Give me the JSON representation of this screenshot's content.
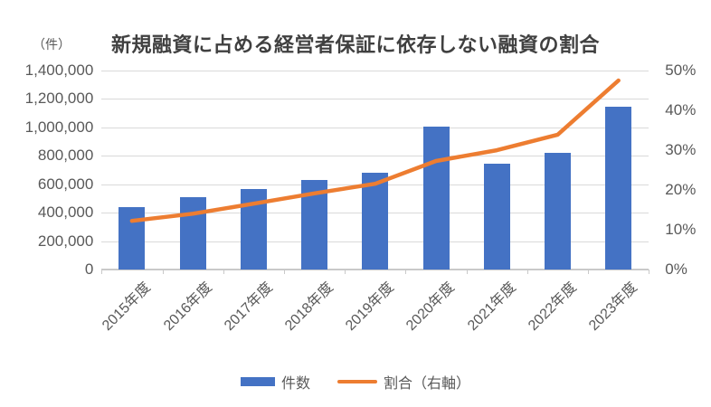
{
  "header": {
    "title": "新規融資に占める経営者保証に依存しない融資の割合"
  },
  "legend": {
    "items": [
      {
        "label": "件数",
        "marker": "bar-swatch",
        "color": "#4472C4"
      },
      {
        "label": "割合（右軸）",
        "marker": "line-swatch",
        "color": "#ED7D31"
      }
    ]
  },
  "colors": {
    "bar": "#4472C4",
    "line": "#ED7D31",
    "gridline": "#D9D9D9",
    "axis": "#C9C9C9",
    "tick_text": "#595959",
    "title_text": "#404040"
  },
  "chart_data": {
    "type": "combo",
    "title": "新規融資に占める経営者保証に依存しない融資の割合",
    "categories": [
      "2015年度",
      "2016年度",
      "2017年度",
      "2018年度",
      "2019年度",
      "2020年度",
      "2021年度",
      "2022年度",
      "2023年度"
    ],
    "series": [
      {
        "name": "件数",
        "type": "bar",
        "axis": "left",
        "color": "#4472C4",
        "values": [
          440000,
          505000,
          565000,
          630000,
          680000,
          1005000,
          745000,
          820000,
          1145000
        ]
      },
      {
        "name": "割合（右軸）",
        "type": "line",
        "axis": "right",
        "color": "#ED7D31",
        "values": [
          12.2,
          14.0,
          16.5,
          19.1,
          21.5,
          27.2,
          29.9,
          33.8,
          47.4
        ]
      }
    ],
    "left_axis": {
      "unit": "（件）",
      "min": 0,
      "max": 1400000,
      "step": 200000,
      "tick_labels": [
        "0",
        "200,000",
        "400,000",
        "600,000",
        "800,000",
        "1,000,000",
        "1,200,000",
        "1,400,000"
      ]
    },
    "right_axis": {
      "min": 0,
      "max": 50,
      "step": 10,
      "tick_labels": [
        "0%",
        "10%",
        "20%",
        "30%",
        "40%",
        "50%"
      ]
    },
    "grid": true,
    "legend_position": "bottom"
  }
}
